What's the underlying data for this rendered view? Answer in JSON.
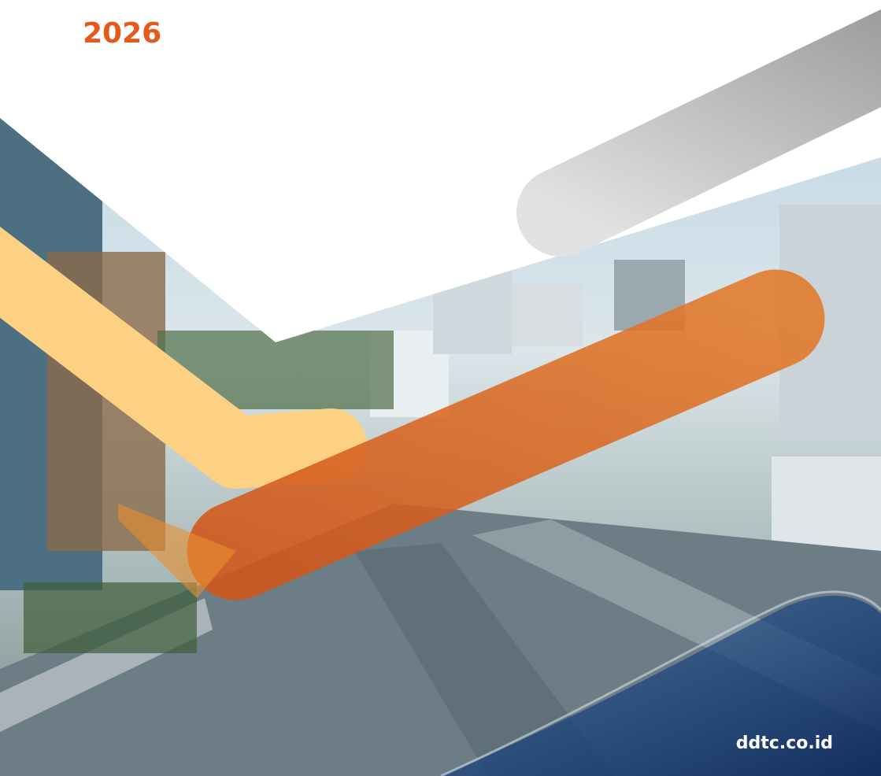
{
  "header": {
    "year": "2026"
  },
  "footer": {
    "website": "ddtc.co.id"
  }
}
